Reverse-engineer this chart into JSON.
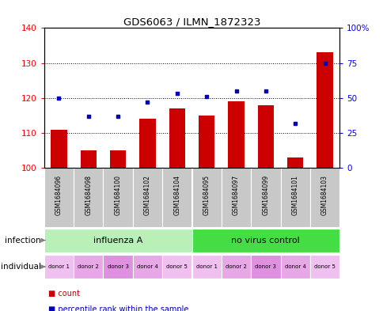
{
  "title": "GDS6063 / ILMN_1872323",
  "samples": [
    "GSM1684096",
    "GSM1684098",
    "GSM1684100",
    "GSM1684102",
    "GSM1684104",
    "GSM1684095",
    "GSM1684097",
    "GSM1684099",
    "GSM1684101",
    "GSM1684103"
  ],
  "counts": [
    111,
    105,
    105,
    114,
    117,
    115,
    119,
    118,
    103,
    133
  ],
  "percentiles": [
    50,
    37,
    37,
    47,
    53,
    51,
    55,
    55,
    32,
    75
  ],
  "ylim_left": [
    100,
    140
  ],
  "ylim_right": [
    0,
    100
  ],
  "yticks_left": [
    100,
    110,
    120,
    130,
    140
  ],
  "yticks_right": [
    0,
    25,
    50,
    75,
    100
  ],
  "ytick_labels_right": [
    "0",
    "25",
    "50",
    "75",
    "100%"
  ],
  "infection_groups": [
    {
      "label": "influenza A",
      "start": 0,
      "end": 5,
      "color": "#b8f0b8"
    },
    {
      "label": "no virus control",
      "start": 5,
      "end": 10,
      "color": "#44dd44"
    }
  ],
  "individual_labels": [
    "donor 1",
    "donor 2",
    "donor 3",
    "donor 4",
    "donor 5",
    "donor 1",
    "donor 2",
    "donor 3",
    "donor 4",
    "donor 5"
  ],
  "individual_colors": [
    "#f0c0f0",
    "#e8a8e8",
    "#e090e0",
    "#e8a8e8",
    "#f0c0f0",
    "#f0c0f0",
    "#e8a8e8",
    "#e090e0",
    "#e8a8e8",
    "#f0c0f0"
  ],
  "bar_color": "#cc0000",
  "dot_color": "#0000bb",
  "count_base": 100,
  "bar_width": 0.55,
  "sample_bg_color": "#c8c8c8"
}
